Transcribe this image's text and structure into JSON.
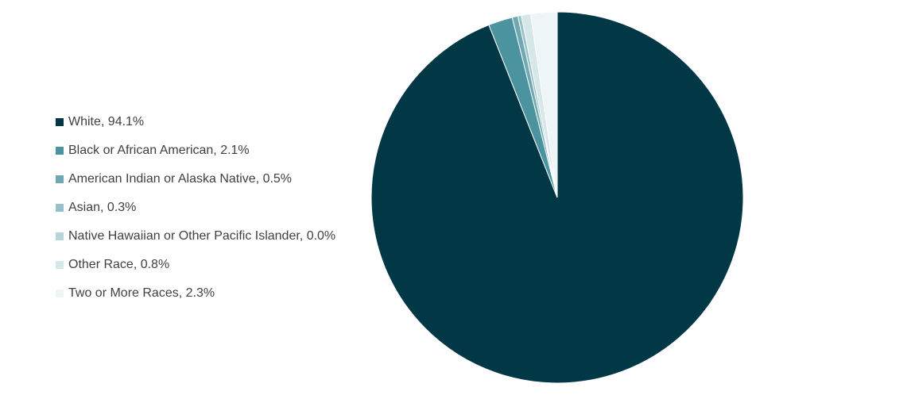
{
  "chart_data": {
    "type": "pie",
    "title": "",
    "legend_position": "left",
    "slices": [
      {
        "label": "White",
        "value": 94.1,
        "display": "White, 94.1%",
        "color": "#023746"
      },
      {
        "label": "Black or African American",
        "value": 2.1,
        "display": "Black or African American, 2.1%",
        "color": "#4a939f"
      },
      {
        "label": "American Indian or Alaska Native",
        "value": 0.5,
        "display": "American Indian or Alaska Native, 0.5%",
        "color": "#6fa8b2"
      },
      {
        "label": "Asian",
        "value": 0.3,
        "display": "Asian, 0.3%",
        "color": "#96c1c8"
      },
      {
        "label": "Native Hawaiian or Other Pacific Islander",
        "value": 0.0,
        "display": "Native Hawaiian or Other Pacific Islander, 0.0%",
        "color": "#b7d5da"
      },
      {
        "label": "Other Race",
        "value": 0.8,
        "display": "Other Race, 0.8%",
        "color": "#d6e7ea"
      },
      {
        "label": "Two or More Races",
        "value": 2.3,
        "display": "Two or More Races, 2.3%",
        "color": "#eef5f6"
      }
    ]
  }
}
